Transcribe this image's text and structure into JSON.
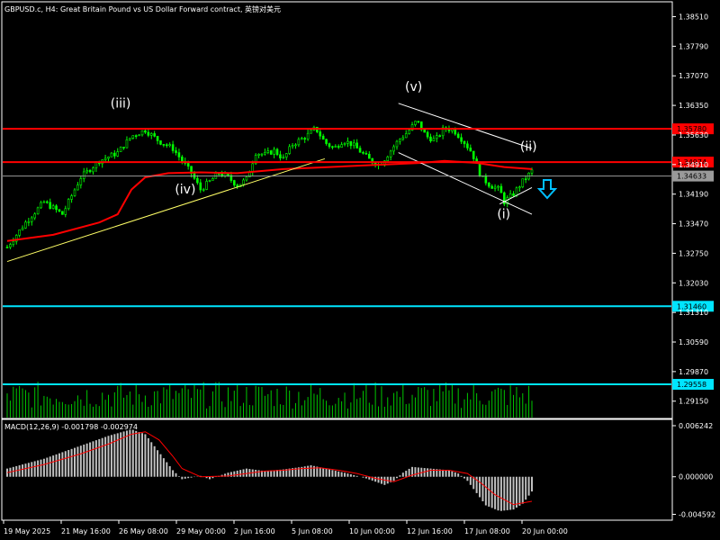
{
  "chart_data": {
    "type": "candlestick",
    "title": "GBPUSD.c, H4:  Great Britain Pound vs US Dollar Forward contract, 英镑对美元",
    "price_axis": {
      "ticks": [
        "1.38510",
        "1.37790",
        "1.37070",
        "1.36350",
        "1.35630",
        "1.34910",
        "1.34190",
        "1.33470",
        "1.32750",
        "1.32030",
        "1.31310",
        "1.30590",
        "1.29870",
        "1.29150"
      ],
      "ylim": [
        1.2875,
        1.3885
      ]
    },
    "time_axis": {
      "ticks": [
        "19 May 2025",
        "21 May 16:00",
        "26 May 08:00",
        "29 May 00:00",
        "2 Jun 16:00",
        "5 Jun 08:00",
        "10 Jun 00:00",
        "12 Jun 16:00",
        "17 Jun 08:00",
        "20 Jun 00:00"
      ]
    },
    "price_path": [
      [
        0,
        1.329
      ],
      [
        4,
        1.335
      ],
      [
        8,
        1.34
      ],
      [
        12,
        1.337
      ],
      [
        16,
        1.346
      ],
      [
        20,
        1.35
      ],
      [
        24,
        1.352
      ],
      [
        27,
        1.356
      ],
      [
        30,
        1.3575
      ],
      [
        33,
        1.3548
      ],
      [
        36,
        1.353
      ],
      [
        38,
        1.35
      ],
      [
        40,
        1.347
      ],
      [
        42,
        1.343
      ],
      [
        44,
        1.345
      ],
      [
        46,
        1.347
      ],
      [
        48,
        1.346
      ],
      [
        50,
        1.344
      ],
      [
        52,
        1.3455
      ],
      [
        54,
        1.352
      ],
      [
        56,
        1.3515
      ],
      [
        58,
        1.3525
      ],
      [
        60,
        1.3505
      ],
      [
        62,
        1.354
      ],
      [
        65,
        1.356
      ],
      [
        67,
        1.358
      ],
      [
        69,
        1.3545
      ],
      [
        71,
        1.353
      ],
      [
        73,
        1.355
      ],
      [
        75,
        1.354
      ],
      [
        77,
        1.352
      ],
      [
        79,
        1.35
      ],
      [
        81,
        1.349
      ],
      [
        83,
        1.352
      ],
      [
        85,
        1.355
      ],
      [
        87,
        1.357
      ],
      [
        89,
        1.3598
      ],
      [
        91,
        1.356
      ],
      [
        93,
        1.355
      ],
      [
        95,
        1.358
      ],
      [
        97,
        1.3575
      ],
      [
        99,
        1.355
      ],
      [
        101,
        1.352
      ],
      [
        103,
        1.346
      ],
      [
        105,
        1.344
      ],
      [
        107,
        1.343
      ],
      [
        108,
        1.34
      ],
      [
        110,
        1.342
      ],
      [
        112,
        1.345
      ],
      [
        114,
        1.3475
      ]
    ],
    "moving_average": [
      [
        0,
        1.3305
      ],
      [
        10,
        1.332
      ],
      [
        20,
        1.335
      ],
      [
        24,
        1.337
      ],
      [
        27,
        1.343
      ],
      [
        30,
        1.346
      ],
      [
        35,
        1.347
      ],
      [
        42,
        1.3472
      ],
      [
        50,
        1.347
      ],
      [
        60,
        1.348
      ],
      [
        70,
        1.3485
      ],
      [
        80,
        1.349
      ],
      [
        90,
        1.3495
      ],
      [
        95,
        1.35
      ],
      [
        102,
        1.3495
      ],
      [
        108,
        1.3485
      ],
      [
        114,
        1.348
      ]
    ],
    "trendline": [
      [
        0,
        1.3255
      ],
      [
        69,
        1.3505
      ]
    ],
    "channel_upper": [
      [
        85,
        1.364
      ],
      [
        114,
        1.353
      ]
    ],
    "channel_lower": [
      [
        85,
        1.352
      ],
      [
        114,
        1.337
      ]
    ],
    "channel_extra": [
      [
        107,
        1.3395
      ],
      [
        114,
        1.3435
      ]
    ],
    "horizontal_lines": [
      {
        "price": 1.3578,
        "label": "1.35780",
        "color": "#ff0000",
        "width": 2
      },
      {
        "price": 1.3497,
        "label": "1.34974",
        "color": "#ff0000",
        "width": 2
      },
      {
        "price": 1.3463,
        "label": "1.34633",
        "color": "#9a9a9a",
        "width": 1
      },
      {
        "price": 1.3146,
        "label": "1.31460",
        "color": "#00e5ff",
        "width": 2
      },
      {
        "price": 1.2956,
        "label": "1.29558",
        "color": "#00e5ff",
        "width": 2
      }
    ],
    "wave_labels": [
      {
        "text": "(iii)",
        "x": 24,
        "price": 1.363
      },
      {
        "text": "(iv)",
        "x": 38,
        "price": 1.342
      },
      {
        "text": "(v)",
        "x": 88,
        "price": 1.367
      },
      {
        "text": "(i)",
        "x": 108,
        "price": 1.336
      },
      {
        "text": "(ii)",
        "x": 113,
        "price": 1.3525
      }
    ],
    "macd": {
      "label": "MACD(12,26,9) -0.001798 -0.002974",
      "ticks": [
        "0.006242",
        "0.000000",
        "-0.004592"
      ],
      "ylim": [
        -0.0052,
        0.0069
      ],
      "histogram_path": [
        [
          0,
          0.001
        ],
        [
          8,
          0.0022
        ],
        [
          16,
          0.0038
        ],
        [
          22,
          0.005
        ],
        [
          27,
          0.0058
        ],
        [
          30,
          0.0052
        ],
        [
          33,
          0.003
        ],
        [
          36,
          0.0008
        ],
        [
          38,
          -0.0003
        ],
        [
          42,
          0.0001
        ],
        [
          44,
          -0.0003
        ],
        [
          48,
          0.0005
        ],
        [
          52,
          0.001
        ],
        [
          56,
          0.0007
        ],
        [
          60,
          0.0009
        ],
        [
          64,
          0.0012
        ],
        [
          66,
          0.0014
        ],
        [
          70,
          0.0009
        ],
        [
          74,
          0.0004
        ],
        [
          78,
          -0.0002
        ],
        [
          82,
          -0.001
        ],
        [
          84,
          -0.0005
        ],
        [
          86,
          0.0005
        ],
        [
          88,
          0.0012
        ],
        [
          92,
          0.001
        ],
        [
          96,
          0.0008
        ],
        [
          98,
          0.0004
        ],
        [
          100,
          -0.0005
        ],
        [
          102,
          -0.002
        ],
        [
          104,
          -0.0035
        ],
        [
          107,
          -0.0042
        ],
        [
          110,
          -0.004
        ],
        [
          112,
          -0.0033
        ],
        [
          114,
          -0.0018
        ]
      ],
      "signal_path": [
        [
          0,
          0.0005
        ],
        [
          8,
          0.0015
        ],
        [
          16,
          0.0028
        ],
        [
          22,
          0.004
        ],
        [
          27,
          0.0052
        ],
        [
          30,
          0.0055
        ],
        [
          33,
          0.0045
        ],
        [
          36,
          0.0025
        ],
        [
          38,
          0.001
        ],
        [
          42,
          0.0
        ],
        [
          48,
          0.0001
        ],
        [
          52,
          0.0004
        ],
        [
          56,
          0.0007
        ],
        [
          60,
          0.0008
        ],
        [
          64,
          0.001
        ],
        [
          68,
          0.0011
        ],
        [
          72,
          0.0008
        ],
        [
          76,
          0.0004
        ],
        [
          80,
          -0.0002
        ],
        [
          84,
          -0.0006
        ],
        [
          88,
          0.0002
        ],
        [
          92,
          0.0008
        ],
        [
          96,
          0.0008
        ],
        [
          100,
          0.0004
        ],
        [
          103,
          -0.0008
        ],
        [
          106,
          -0.0022
        ],
        [
          110,
          -0.0034
        ],
        [
          114,
          -0.003
        ]
      ]
    },
    "colors": {
      "background": "#000000",
      "candle": "#00ff00",
      "moving_average": "#ff0000",
      "trendline": "#ffff66",
      "channel": "#ffffff",
      "volume": "#00c800",
      "macd_histogram": "#c0c0c0",
      "macd_signal": "#ff0000",
      "arrow": "#00bfff"
    },
    "grid": false,
    "legend": "none"
  }
}
